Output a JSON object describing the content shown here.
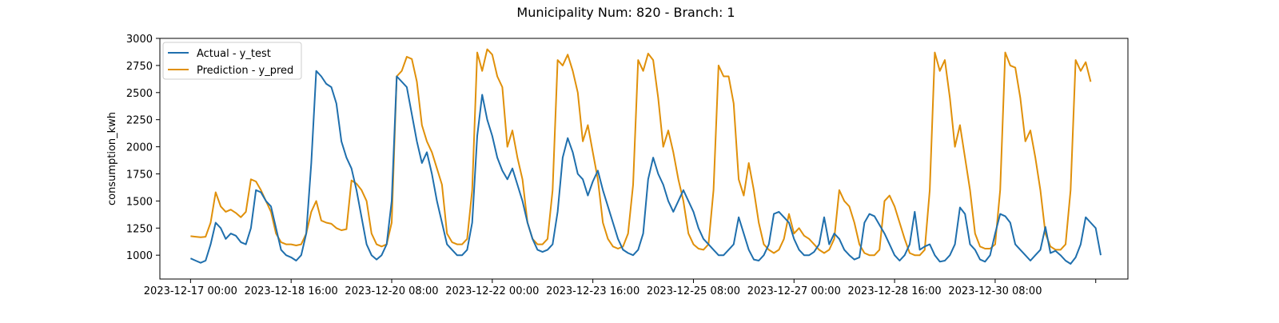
{
  "chart_data": {
    "type": "line",
    "title": "Municipality Num: 820 - Branch: 1",
    "xlabel": "",
    "ylabel": "consumption_kwh",
    "ylim": [
      780,
      3000
    ],
    "grid": false,
    "legend_position": "top-left",
    "x_start": "2023-12-17 00:00",
    "x_step_hours": 2,
    "x_ticks": [
      {
        "index": 0,
        "label": "2023-12-17 00:00"
      },
      {
        "index": 20,
        "label": "2023-12-18 16:00"
      },
      {
        "index": 40,
        "label": "2023-12-20 08:00"
      },
      {
        "index": 60,
        "label": "2023-12-22 00:00"
      },
      {
        "index": 80,
        "label": "2023-12-23 16:00"
      },
      {
        "index": 100,
        "label": "2023-12-25 08:00"
      },
      {
        "index": 120,
        "label": "2023-12-27 00:00"
      },
      {
        "index": 140,
        "label": "2023-12-28 16:00"
      },
      {
        "index": 160,
        "label": "2023-12-30 08:00"
      },
      {
        "index": 180,
        "label": ""
      }
    ],
    "y_ticks": [
      1000,
      1250,
      1500,
      1750,
      2000,
      2250,
      2500,
      2750,
      3000
    ],
    "series": [
      {
        "name": "Actual - y_test",
        "color": "#1f6fad",
        "values": [
          970,
          950,
          930,
          950,
          1100,
          1300,
          1250,
          1150,
          1200,
          1180,
          1120,
          1100,
          1250,
          1600,
          1580,
          1500,
          1450,
          1250,
          1050,
          1000,
          980,
          950,
          1000,
          1200,
          1850,
          2700,
          2650,
          2580,
          2550,
          2400,
          2050,
          1900,
          1800,
          1600,
          1350,
          1100,
          1000,
          960,
          1000,
          1100,
          1500,
          2650,
          2600,
          2550,
          2300,
          2050,
          1850,
          1950,
          1750,
          1500,
          1300,
          1100,
          1050,
          1000,
          1000,
          1050,
          1300,
          2100,
          2480,
          2250,
          2100,
          1900,
          1780,
          1700,
          1800,
          1650,
          1500,
          1300,
          1150,
          1050,
          1030,
          1050,
          1100,
          1400,
          1900,
          2080,
          1950,
          1750,
          1700,
          1550,
          1680,
          1780,
          1600,
          1450,
          1300,
          1150,
          1050,
          1020,
          1000,
          1050,
          1200,
          1700,
          1900,
          1750,
          1650,
          1500,
          1400,
          1500,
          1600,
          1500,
          1400,
          1250,
          1150,
          1100,
          1050,
          1000,
          1000,
          1050,
          1100,
          1350,
          1200,
          1050,
          960,
          950,
          1000,
          1100,
          1380,
          1400,
          1350,
          1300,
          1150,
          1050,
          1000,
          1000,
          1030,
          1100,
          1350,
          1100,
          1200,
          1150,
          1050,
          1000,
          960,
          980,
          1300,
          1380,
          1360,
          1280,
          1200,
          1100,
          1000,
          950,
          1000,
          1100,
          1400,
          1050,
          1080,
          1100,
          1000,
          940,
          950,
          1000,
          1100,
          1440,
          1380,
          1100,
          1050,
          960,
          940,
          1000,
          1200,
          1380,
          1360,
          1300,
          1100,
          1050,
          1000,
          950,
          1000,
          1050,
          1260,
          1020,
          1040,
          1000,
          950,
          920,
          980,
          1100,
          1350,
          1300,
          1250,
          1000
        ]
      },
      {
        "name": "Prediction - y_pred",
        "color": "#e0900a",
        "values": [
          1175,
          1170,
          1165,
          1170,
          1300,
          1580,
          1450,
          1400,
          1420,
          1390,
          1350,
          1400,
          1700,
          1680,
          1600,
          1500,
          1400,
          1200,
          1120,
          1100,
          1100,
          1090,
          1100,
          1200,
          1400,
          1500,
          1320,
          1300,
          1290,
          1250,
          1230,
          1240,
          1690,
          1660,
          1600,
          1500,
          1200,
          1100,
          1080,
          1100,
          1300,
          2650,
          2700,
          2830,
          2810,
          2600,
          2200,
          2050,
          1950,
          1800,
          1650,
          1200,
          1120,
          1100,
          1100,
          1150,
          1600,
          2870,
          2700,
          2900,
          2850,
          2650,
          2550,
          2000,
          2150,
          1900,
          1700,
          1300,
          1150,
          1100,
          1100,
          1150,
          1600,
          2800,
          2750,
          2850,
          2700,
          2500,
          2050,
          2200,
          1950,
          1700,
          1300,
          1150,
          1080,
          1060,
          1080,
          1200,
          1650,
          2800,
          2700,
          2860,
          2800,
          2450,
          2000,
          2150,
          1950,
          1700,
          1500,
          1200,
          1100,
          1060,
          1050,
          1100,
          1600,
          2750,
          2650,
          2650,
          2400,
          1700,
          1550,
          1850,
          1600,
          1300,
          1100,
          1050,
          1020,
          1050,
          1150,
          1380,
          1200,
          1250,
          1180,
          1150,
          1100,
          1050,
          1020,
          1050,
          1150,
          1600,
          1500,
          1450,
          1300,
          1100,
          1020,
          1000,
          1000,
          1050,
          1500,
          1550,
          1450,
          1300,
          1150,
          1020,
          1000,
          1000,
          1050,
          1600,
          2870,
          2700,
          2800,
          2450,
          2000,
          2200,
          1900,
          1600,
          1200,
          1080,
          1060,
          1060,
          1100,
          1600,
          2870,
          2750,
          2730,
          2450,
          2050,
          2150,
          1900,
          1600,
          1200,
          1080,
          1050,
          1050,
          1100,
          1600,
          2800,
          2700,
          2780,
          2600
        ]
      }
    ]
  }
}
